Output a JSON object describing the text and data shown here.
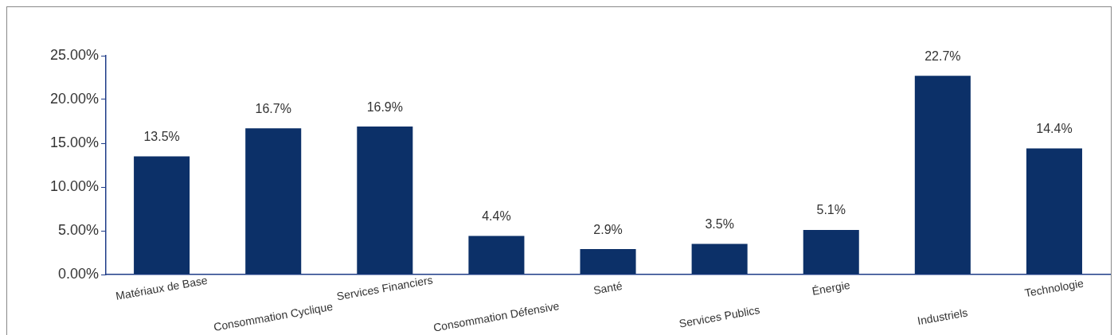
{
  "chart_data": {
    "type": "bar",
    "categories": [
      "Matériaux de Base",
      "Consommation Cyclique",
      "Services Financiers",
      "Consommation Défensive",
      "Santé",
      "Services Publics",
      "Énergie",
      "Industriels",
      "Technologie"
    ],
    "values": [
      13.5,
      16.7,
      16.9,
      4.4,
      2.9,
      3.5,
      5.1,
      22.7,
      14.4
    ],
    "value_labels": [
      "13.5%",
      "16.7%",
      "16.9%",
      "4.4%",
      "2.9%",
      "3.5%",
      "5.1%",
      "22.7%",
      "14.4%"
    ],
    "color": "#0c3068",
    "ylim": [
      0,
      25
    ],
    "yticks": [
      {
        "value": 0,
        "label": "0.00%"
      },
      {
        "value": 5,
        "label": "5.00%"
      },
      {
        "value": 10,
        "label": "10.00%"
      },
      {
        "value": 15,
        "label": "15.00%"
      },
      {
        "value": 20,
        "label": "20.00%"
      },
      {
        "value": 25,
        "label": "25.00%"
      }
    ],
    "grid": false,
    "legend": false
  }
}
